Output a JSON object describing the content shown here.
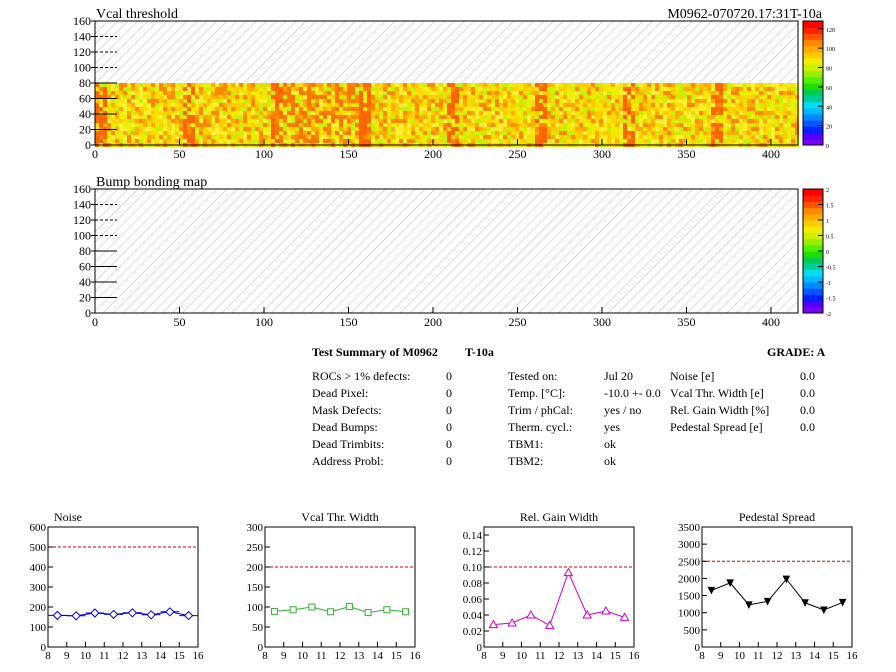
{
  "top_title_left": "Vcal threshold",
  "top_title_right": "M0962-070720.17:31T-10a",
  "colors": {
    "accent_red": "#cc0000",
    "noise_line": "#0000cc",
    "vcal_line": "#33aa33",
    "gain_line": "#cc00cc",
    "ped_line": "#000000"
  },
  "chart_data": [
    {
      "type": "heatmap",
      "title": "Vcal threshold",
      "xlim": [
        0,
        416
      ],
      "ylim": [
        0,
        160
      ],
      "x_ticks": [
        0,
        50,
        100,
        150,
        200,
        250,
        300,
        350,
        400
      ],
      "y_ticks": [
        0,
        20,
        40,
        60,
        80,
        100,
        120,
        140,
        160
      ],
      "filled_region_y": [
        0,
        80
      ],
      "colorbar_ticks": [
        0,
        20,
        40,
        60,
        80,
        100,
        120
      ]
    },
    {
      "type": "heatmap",
      "title": "Bump bonding map",
      "xlim": [
        0,
        416
      ],
      "ylim": [
        0,
        160
      ],
      "x_ticks": [
        0,
        50,
        100,
        150,
        200,
        250,
        300,
        350,
        400
      ],
      "y_ticks": [
        0,
        20,
        40,
        60,
        80,
        100,
        120,
        140,
        160
      ],
      "colorbar_ticks": [
        -2,
        -1.5,
        -1,
        -0.5,
        0,
        0.5,
        1,
        1.5,
        2
      ]
    },
    {
      "type": "line",
      "title": "Noise",
      "x": [
        8.5,
        9.5,
        10.5,
        11.5,
        12.5,
        13.5,
        14.5,
        15.5
      ],
      "values": [
        158,
        156,
        170,
        163,
        171,
        161,
        176,
        157
      ],
      "xlim": [
        8,
        16
      ],
      "ylim": [
        0,
        600
      ],
      "x_ticks": [
        8,
        9,
        10,
        11,
        12,
        13,
        14,
        15,
        16
      ],
      "y_ticks": [
        0,
        100,
        200,
        300,
        400,
        500,
        600
      ],
      "limit": 500
    },
    {
      "type": "line",
      "title": "Vcal Thr. Width",
      "x": [
        8.5,
        9.5,
        10.5,
        11.5,
        12.5,
        13.5,
        14.5,
        15.5
      ],
      "values": [
        89,
        93,
        100,
        88,
        101,
        86,
        93,
        88
      ],
      "xlim": [
        8,
        16
      ],
      "ylim": [
        0,
        300
      ],
      "x_ticks": [
        8,
        9,
        10,
        11,
        12,
        13,
        14,
        15,
        16
      ],
      "y_ticks": [
        0,
        50,
        100,
        150,
        200,
        250,
        300
      ],
      "limit": 200
    },
    {
      "type": "line",
      "title": "Rel. Gain Width",
      "x": [
        8.5,
        9.5,
        10.5,
        11.5,
        12.5,
        13.5,
        14.5,
        15.5
      ],
      "values": [
        0.028,
        0.03,
        0.04,
        0.027,
        0.093,
        0.04,
        0.045,
        0.037
      ],
      "xlim": [
        8,
        16
      ],
      "ylim": [
        0,
        0.15
      ],
      "x_ticks": [
        8,
        9,
        10,
        11,
        12,
        13,
        14,
        15,
        16
      ],
      "y_ticks": [
        0,
        0.02,
        0.04,
        0.06,
        0.08,
        0.1,
        0.12,
        0.14
      ],
      "limit": 0.1
    },
    {
      "type": "line",
      "title": "Pedestal Spread",
      "x": [
        8.5,
        9.5,
        10.5,
        11.5,
        12.5,
        13.5,
        14.5,
        15.5
      ],
      "values": [
        1650,
        1870,
        1230,
        1330,
        1980,
        1290,
        1080,
        1300
      ],
      "xlim": [
        8,
        16
      ],
      "ylim": [
        0,
        3500
      ],
      "x_ticks": [
        8,
        9,
        10,
        11,
        12,
        13,
        14,
        15,
        16
      ],
      "y_ticks": [
        0,
        500,
        1000,
        1500,
        2000,
        2500,
        3000,
        3500
      ],
      "limit": 2500
    }
  ],
  "summary": {
    "title": "Test Summary of M0962",
    "temp_tag": "T-10a",
    "grade_label": "GRADE:  A",
    "col1": [
      {
        "label": "ROCs > 1% defects:",
        "value": "0"
      },
      {
        "label": "Dead Pixel:",
        "value": "0"
      },
      {
        "label": "Mask Defects:",
        "value": "0"
      },
      {
        "label": "Dead Bumps:",
        "value": "0"
      },
      {
        "label": "Dead Trimbits:",
        "value": "0"
      },
      {
        "label": "Address Probl:",
        "value": "0"
      }
    ],
    "col2": [
      {
        "label": "Tested on:",
        "value": "Jul 20"
      },
      {
        "label": "Temp. [°C]:",
        "value": "-10.0 +- 0.0"
      },
      {
        "label": "Trim / phCal:",
        "value": "yes / no"
      },
      {
        "label": "Therm. cycl.:",
        "value": "yes"
      },
      {
        "label": "TBM1:",
        "value": "ok"
      },
      {
        "label": "TBM2:",
        "value": "ok"
      }
    ],
    "col3": [
      {
        "label": "Noise [e]",
        "value": "0.0"
      },
      {
        "label": "Vcal Thr. Width [e]",
        "value": "0.0"
      },
      {
        "label": "Rel. Gain Width [%]",
        "value": "0.0"
      },
      {
        "label": "Pedestal Spread [e]",
        "value": "0.0"
      }
    ]
  }
}
